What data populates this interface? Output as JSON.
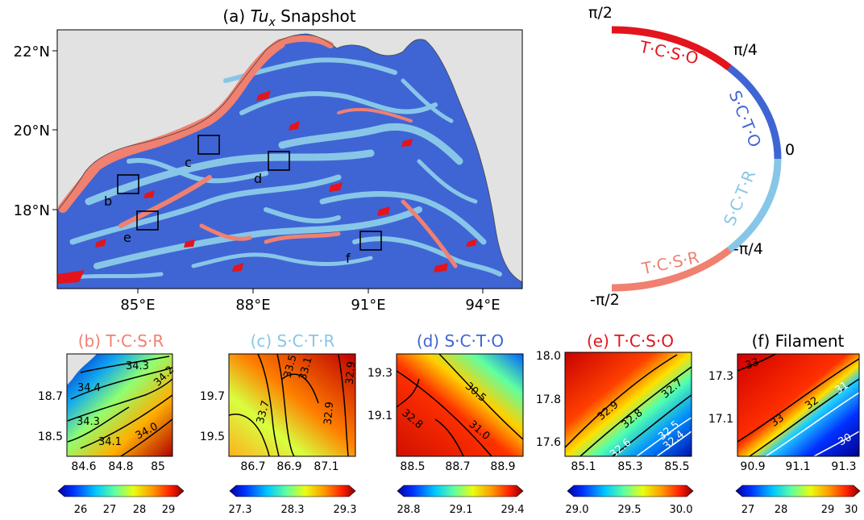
{
  "main_panel": {
    "title_prefix": "(a) ",
    "title_var": "Tu",
    "title_sub": "x",
    "title_suffix": " Snapshot",
    "lat_labels": [
      "22°N",
      "20°N",
      "18°N"
    ],
    "lon_labels": [
      "85°E",
      "88°E",
      "91°E",
      "94°E"
    ],
    "box_labels": [
      "b",
      "c",
      "d",
      "e",
      "f"
    ],
    "colors": {
      "TCSO": "#e3141c",
      "SCTO": "#3f65d4",
      "SCTR": "#88c6e8",
      "TCSR": "#f08070",
      "land": "#e2e2e2"
    }
  },
  "angle_wheel": {
    "tick_labels": [
      "π/2",
      "π/4",
      "0",
      "-π/4",
      "-π/2"
    ],
    "segments": [
      {
        "label": "T·C·S·O",
        "color": "#e3141c"
      },
      {
        "label": "S·C·T·O",
        "color": "#3f65d4"
      },
      {
        "label": "S·C·T·R",
        "color": "#88c6e8"
      },
      {
        "label": "T·C·S·R",
        "color": "#f08070"
      }
    ]
  },
  "subpanels": [
    {
      "prefix": "(b) ",
      "name": "T·C·S·R",
      "title_color": "#f08070",
      "x_ticks": [
        "84.6",
        "84.8",
        "85"
      ],
      "y_ticks": [
        "18.7",
        "18.5"
      ],
      "contour_labels": [
        "34.3",
        "34.4",
        "34.2",
        "34.3",
        "34.1",
        "34.0"
      ],
      "colorbar_ticks": [
        "26",
        "27",
        "28",
        "29"
      ]
    },
    {
      "prefix": "(c) ",
      "name": "S·C·T·R",
      "title_color": "#88c6e8",
      "x_ticks": [
        "86.7",
        "86.9",
        "87.1"
      ],
      "y_ticks": [
        "19.7",
        "19.5"
      ],
      "contour_labels": [
        "33.5",
        "33.1",
        "33.7",
        "32.9",
        "32.9"
      ],
      "colorbar_ticks": [
        "27.3",
        "28.3",
        "29.3"
      ]
    },
    {
      "prefix": "(d) ",
      "name": "S·C·T·O",
      "title_color": "#3f65d4",
      "x_ticks": [
        "88.5",
        "88.7",
        "88.9"
      ],
      "y_ticks": [
        "19.3",
        "19.1"
      ],
      "contour_labels": [
        "30.5",
        "32.8",
        "31.0"
      ],
      "colorbar_ticks": [
        "28.8",
        "29.1",
        "29.4"
      ]
    },
    {
      "prefix": "(e) ",
      "name": "T·C·S·O",
      "title_color": "#e3141c",
      "x_ticks": [
        "85.1",
        "85.3",
        "85.5"
      ],
      "y_ticks": [
        "18.0",
        "17.8",
        "17.6"
      ],
      "contour_labels": [
        "32.9",
        "32.8",
        "32.7",
        "32.5",
        "32.4",
        "32.6"
      ],
      "colorbar_ticks": [
        "29.0",
        "29.5",
        "30.0"
      ]
    },
    {
      "prefix": "(f) ",
      "name": "Filament",
      "title_color": "#000000",
      "x_ticks": [
        "90.9",
        "91.1",
        "91.3"
      ],
      "y_ticks": [
        "17.3",
        "17.1"
      ],
      "contour_labels": [
        "33",
        "33",
        "32",
        "31",
        "30"
      ],
      "colorbar_ticks": [
        "27",
        "28",
        "29",
        "30"
      ]
    }
  ]
}
